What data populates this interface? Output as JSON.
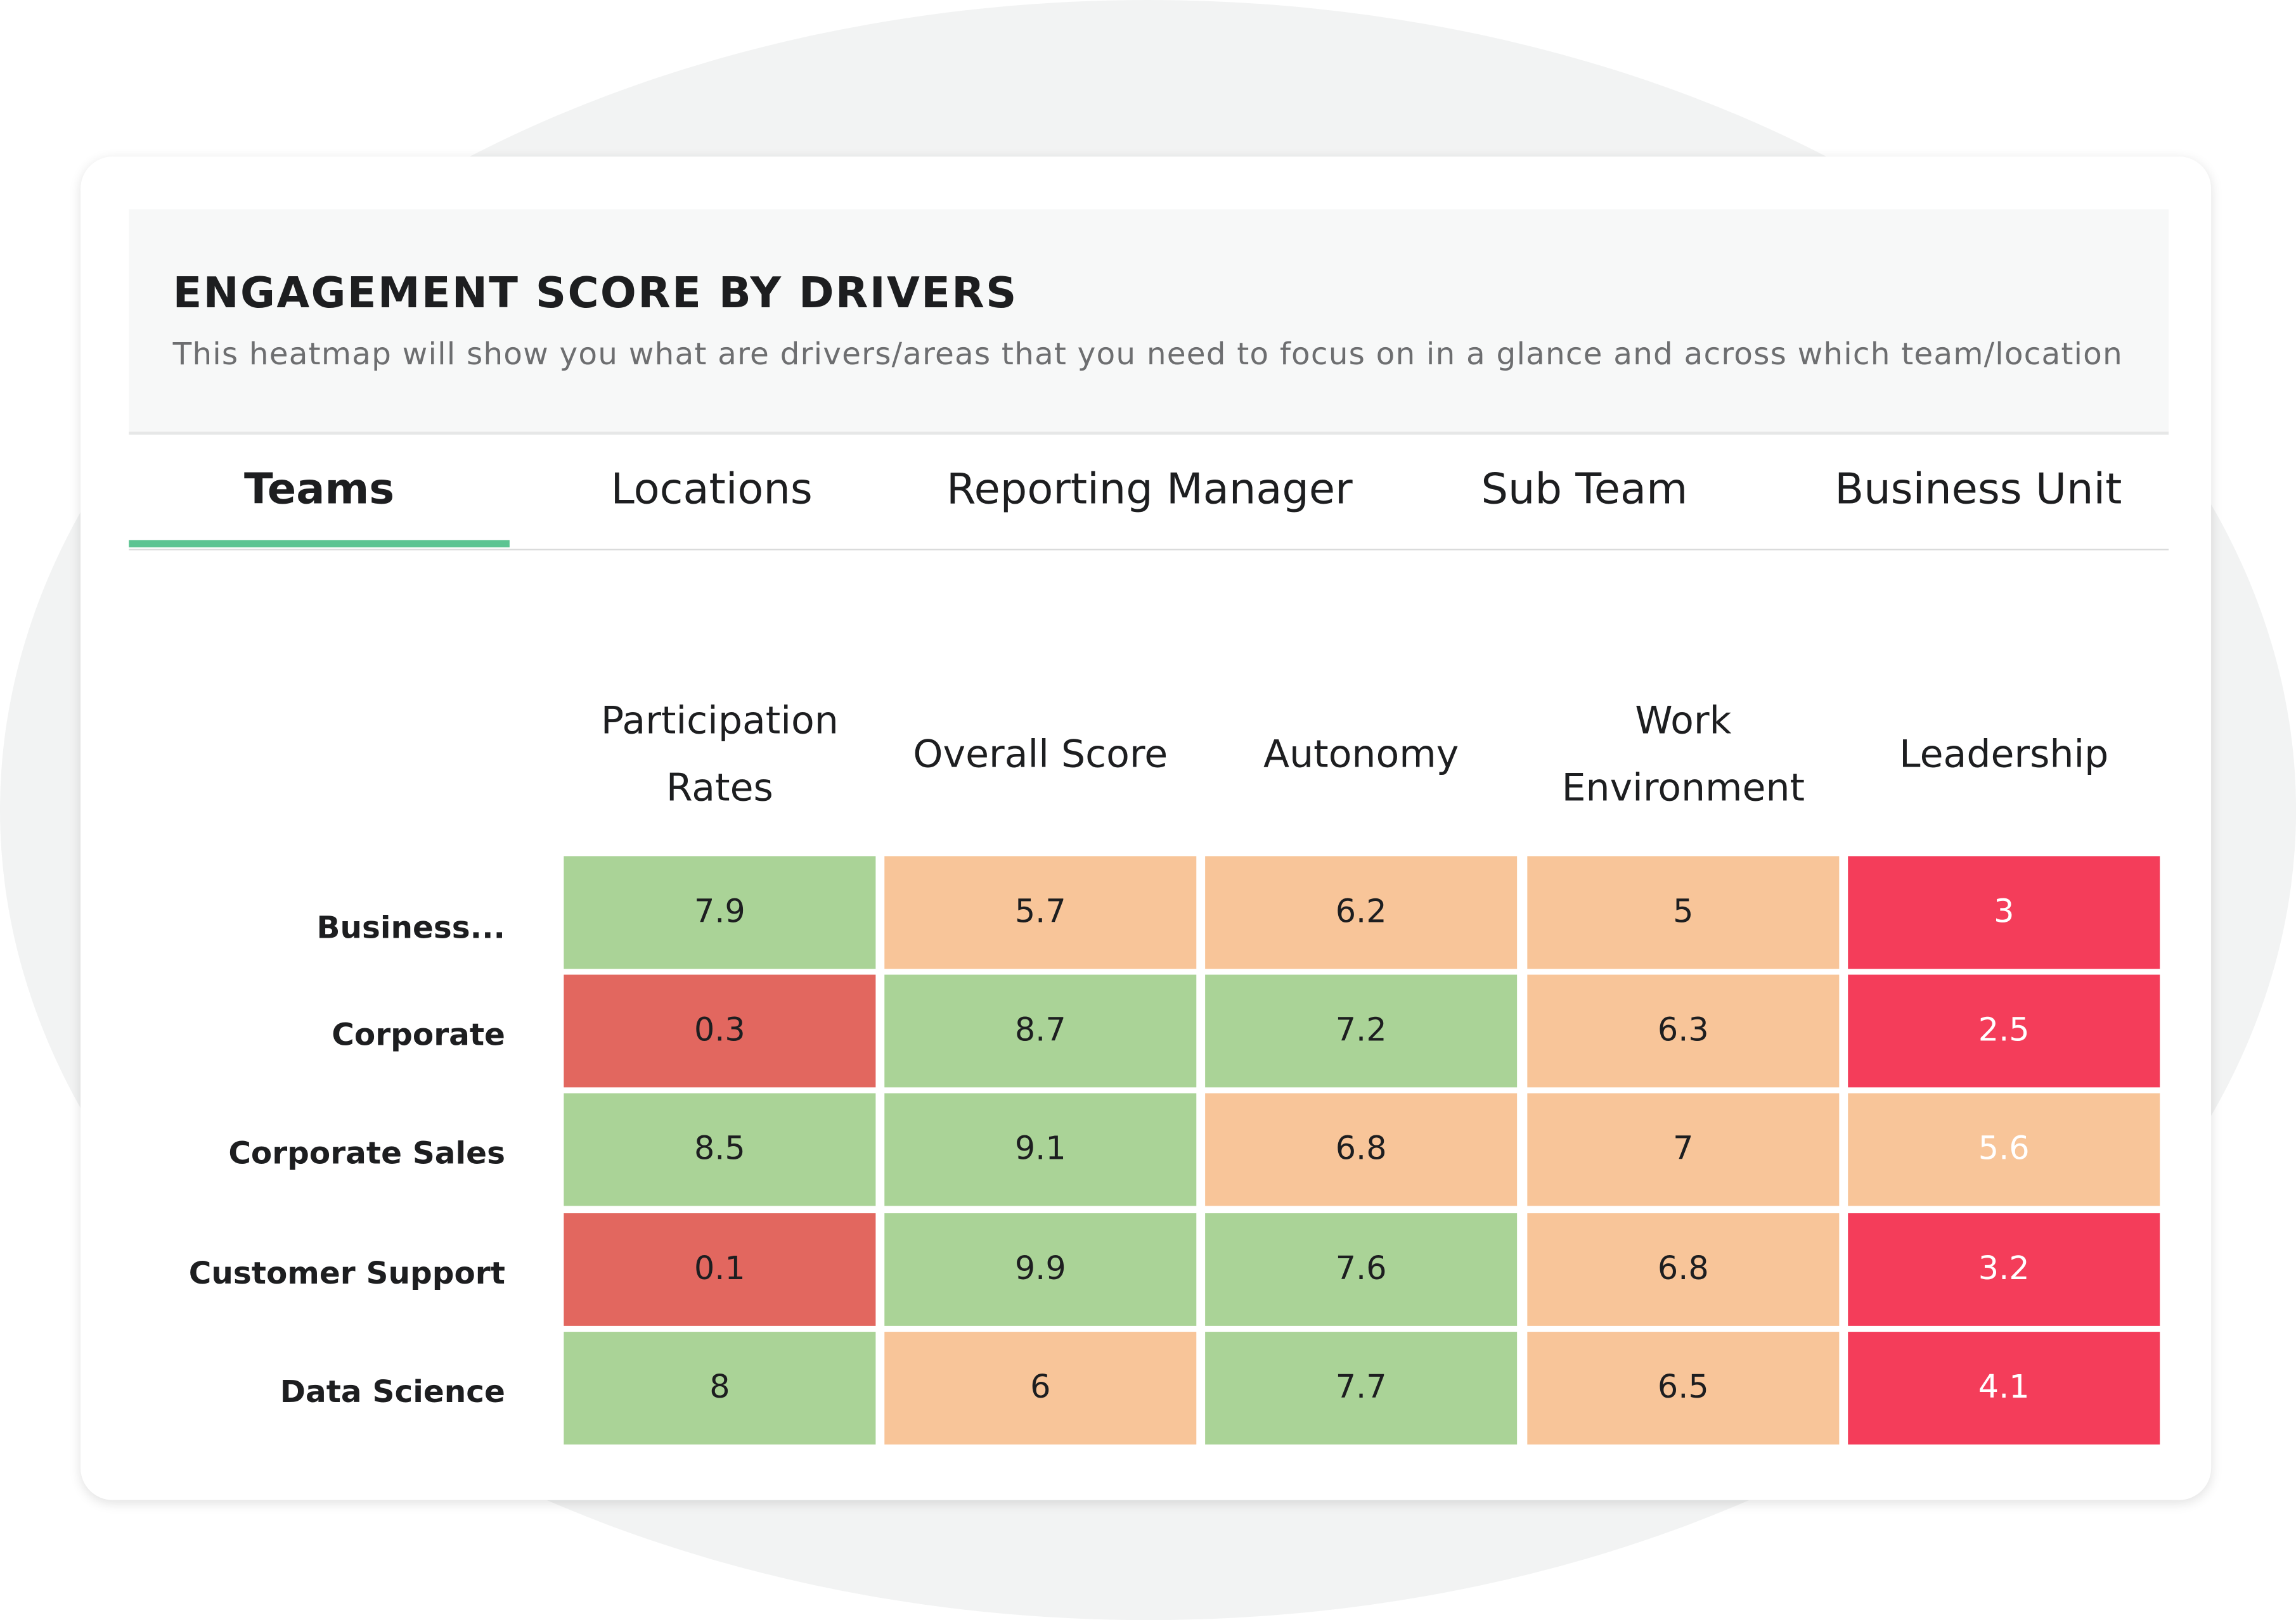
{
  "header": {
    "title": "ENGAGEMENT SCORE BY DRIVERS",
    "subtitle": "This heatmap will show you what are drivers/areas that you need to focus on in a glance and across which team/location"
  },
  "tabs": [
    {
      "label": "Teams",
      "active": true
    },
    {
      "label": "Locations",
      "active": false
    },
    {
      "label": "Reporting Manager",
      "active": false
    },
    {
      "label": "Sub Team",
      "active": false
    },
    {
      "label": "Business Unit",
      "active": false
    }
  ],
  "accent_color": "#5cc492",
  "chart_data": {
    "type": "heatmap",
    "columns": [
      [
        "Participation",
        "Rates"
      ],
      [
        "Overall Score"
      ],
      [
        "Autonomy"
      ],
      [
        "Work",
        "Environment"
      ],
      [
        "Leadership"
      ]
    ],
    "rows": [
      "Business...",
      "Corporate",
      "Corporate Sales",
      "Customer Support",
      "Data Science"
    ],
    "values": [
      [
        "7.9",
        "5.7",
        "6.2",
        "5",
        "3"
      ],
      [
        "0.3",
        "8.7",
        "7.2",
        "6.3",
        "2.5"
      ],
      [
        "8.5",
        "9.1",
        "6.8",
        "7",
        "5.6"
      ],
      [
        "0.1",
        "9.9",
        "7.6",
        "6.8",
        "3.2"
      ],
      [
        "8",
        "6",
        "7.7",
        "6.5",
        "4.1"
      ]
    ],
    "cell_colors": [
      [
        "#aad397",
        "#f8c599",
        "#f8c599",
        "#f8c599",
        "#f43d5a"
      ],
      [
        "#e2675f",
        "#aad397",
        "#aad397",
        "#f8c599",
        "#f43d5a"
      ],
      [
        "#aad397",
        "#aad397",
        "#f8c599",
        "#f8c599",
        "#f8c599"
      ],
      [
        "#e2675f",
        "#aad397",
        "#aad397",
        "#f8c599",
        "#f43d5a"
      ],
      [
        "#aad397",
        "#f8c599",
        "#aad397",
        "#f8c599",
        "#f43d5a"
      ]
    ],
    "text_colors": [
      [
        "#1d1e20",
        "#1d1e20",
        "#1d1e20",
        "#1d1e20",
        "#ffffff"
      ],
      [
        "#1d1e20",
        "#1d1e20",
        "#1d1e20",
        "#1d1e20",
        "#ffffff"
      ],
      [
        "#1d1e20",
        "#1d1e20",
        "#1d1e20",
        "#1d1e20",
        "#ffffff"
      ],
      [
        "#1d1e20",
        "#1d1e20",
        "#1d1e20",
        "#1d1e20",
        "#ffffff"
      ],
      [
        "#1d1e20",
        "#1d1e20",
        "#1d1e20",
        "#1d1e20",
        "#ffffff"
      ]
    ]
  }
}
